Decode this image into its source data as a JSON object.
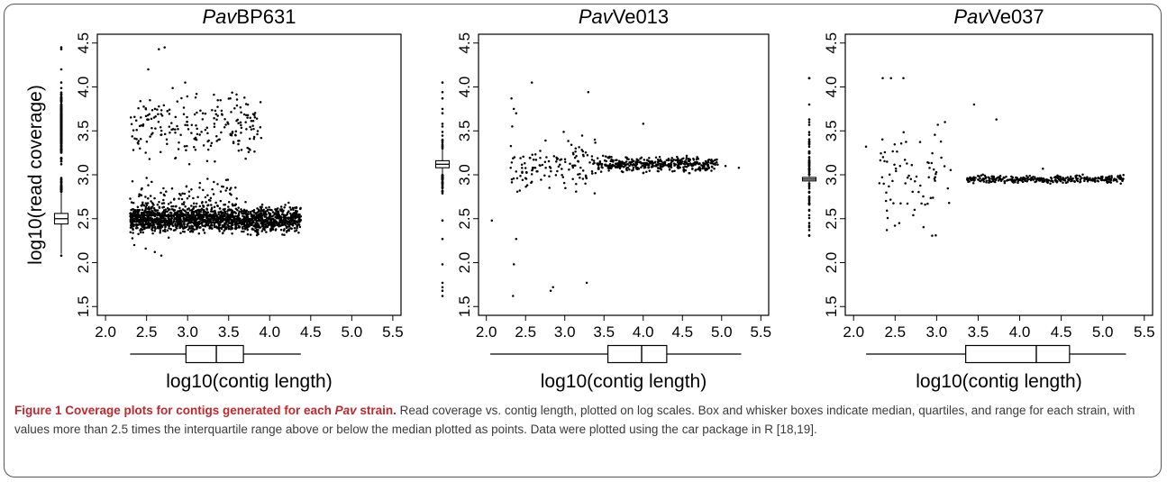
{
  "caption": {
    "title_pre": "Figure 1 Coverage plots for contigs generated for each ",
    "title_italic": "Pav",
    "title_post": " strain.",
    "text": " Read coverage vs. contig length, plotted on log scales. Box and whisker boxes indicate median, quartiles, and range for each strain, with values more than 2.5 times the interquartile range above or below the median plotted as points. Data were plotted using the car package in R [18,19]."
  },
  "colors": {
    "points": "#000000",
    "axis": "#000000",
    "frame_border": "#555555",
    "caption_title": "#c1272d"
  },
  "chart_data": [
    {
      "type": "scatter",
      "title_italic": "Pav",
      "title_rest": "BP631",
      "xlabel": "log10(contig length)",
      "ylabel": "log10(read coverage)",
      "xlim": [
        1.9,
        5.6
      ],
      "ylim": [
        1.4,
        4.6
      ],
      "xticks": [
        "2.0",
        "2.5",
        "3.0",
        "3.5",
        "4.0",
        "4.5",
        "5.0",
        "5.5"
      ],
      "yticks": [
        "1.5",
        "2.0",
        "2.5",
        "3.0",
        "3.5",
        "4.0",
        "4.5"
      ],
      "x_boxplot": {
        "min": 2.3,
        "q1": 2.98,
        "median": 3.35,
        "q3": 3.68,
        "max": 4.38
      },
      "y_boxplot": {
        "min": 2.1,
        "q1": 2.44,
        "median": 2.5,
        "q3": 2.56,
        "max": 2.8
      },
      "clusters": [
        {
          "x": [
            2.3,
            4.38
          ],
          "y_center": 2.49,
          "y_spread": 0.07,
          "n": 1700
        },
        {
          "x": [
            2.3,
            3.9
          ],
          "y_center": 3.55,
          "y_spread": 0.18,
          "n": 220
        },
        {
          "x": [
            2.3,
            3.6
          ],
          "y_center": 2.75,
          "y_spread": 0.1,
          "n": 110
        }
      ],
      "points": [
        [
          2.65,
          4.43
        ],
        [
          2.72,
          4.45
        ],
        [
          2.52,
          4.2
        ],
        [
          2.97,
          4.05
        ],
        [
          2.35,
          2.2
        ],
        [
          2.6,
          2.12
        ],
        [
          2.68,
          2.08
        ],
        [
          2.49,
          2.16
        ],
        [
          3.52,
          3.87
        ]
      ]
    },
    {
      "type": "scatter",
      "title_italic": "Pav",
      "title_rest": "Ve013",
      "xlabel": "log10(contig length)",
      "ylabel": "",
      "xlim": [
        1.9,
        5.6
      ],
      "ylim": [
        1.4,
        4.6
      ],
      "xticks": [
        "2.0",
        "2.5",
        "3.0",
        "3.5",
        "4.0",
        "4.5",
        "5.0",
        "5.5"
      ],
      "yticks": [
        "1.5",
        "2.0",
        "2.5",
        "3.0",
        "3.5",
        "4.0",
        "4.5"
      ],
      "x_boxplot": {
        "min": 2.05,
        "q1": 3.55,
        "median": 3.98,
        "q3": 4.3,
        "max": 5.25
      },
      "y_boxplot": {
        "min": 3.0,
        "q1": 3.08,
        "median": 3.12,
        "q3": 3.16,
        "max": 3.3
      },
      "clusters": [
        {
          "x": [
            3.4,
            4.95
          ],
          "y_center": 3.12,
          "y_spread": 0.04,
          "n": 420
        },
        {
          "x": [
            2.3,
            3.4
          ],
          "y_center": 3.12,
          "y_spread": 0.14,
          "n": 130
        }
      ],
      "points": [
        [
          2.07,
          2.48
        ],
        [
          2.38,
          2.27
        ],
        [
          2.35,
          1.98
        ],
        [
          2.34,
          1.62
        ],
        [
          2.82,
          1.68
        ],
        [
          2.85,
          1.72
        ],
        [
          3.28,
          1.77
        ],
        [
          2.58,
          4.05
        ],
        [
          3.3,
          3.94
        ],
        [
          4.0,
          3.58
        ],
        [
          2.32,
          3.87
        ],
        [
          2.35,
          3.75
        ],
        [
          2.38,
          3.7
        ],
        [
          2.33,
          3.55
        ],
        [
          5.22,
          3.08
        ],
        [
          5.05,
          3.1
        ]
      ]
    },
    {
      "type": "scatter",
      "title_italic": "Pav",
      "title_rest": "Ve037",
      "xlabel": "log10(contig length)",
      "ylabel": "",
      "xlim": [
        1.9,
        5.6
      ],
      "ylim": [
        1.4,
        4.6
      ],
      "xticks": [
        "2.0",
        "2.5",
        "3.0",
        "3.5",
        "4.0",
        "4.5",
        "5.0",
        "5.5"
      ],
      "yticks": [
        "1.5",
        "2.0",
        "2.5",
        "3.0",
        "3.5",
        "4.0",
        "4.5"
      ],
      "x_boxplot": {
        "min": 2.15,
        "q1": 3.35,
        "median": 4.2,
        "q3": 4.6,
        "max": 5.28
      },
      "y_boxplot": {
        "min": 2.9,
        "q1": 2.93,
        "median": 2.95,
        "q3": 2.97,
        "max": 3.0
      },
      "clusters": [
        {
          "x": [
            3.35,
            5.25
          ],
          "y_center": 2.95,
          "y_spread": 0.02,
          "n": 320
        },
        {
          "x": [
            2.3,
            3.2
          ],
          "y_center": 3.0,
          "y_spread": 0.3,
          "n": 75
        }
      ],
      "points": [
        [
          2.15,
          3.32
        ],
        [
          2.35,
          4.1
        ],
        [
          2.45,
          4.1
        ],
        [
          2.6,
          4.1
        ],
        [
          2.4,
          2.37
        ],
        [
          2.55,
          2.45
        ],
        [
          3.45,
          3.8
        ],
        [
          3.72,
          3.63
        ],
        [
          3.1,
          3.6
        ],
        [
          3.15,
          2.68
        ],
        [
          4.28,
          3.07
        ]
      ]
    }
  ]
}
